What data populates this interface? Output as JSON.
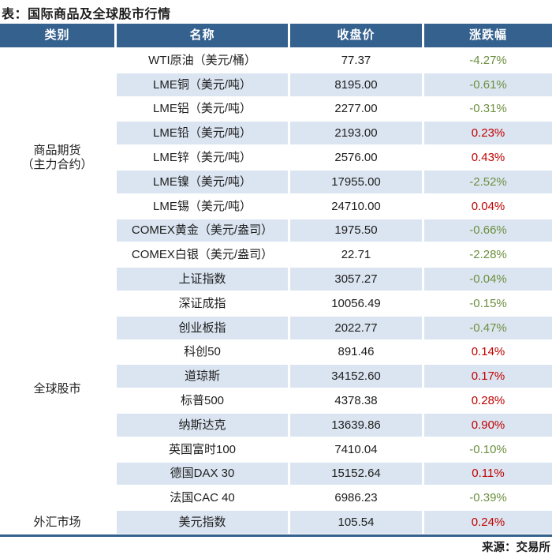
{
  "title": "表：国际商品及全球股市行情",
  "source": "来源：交易所",
  "colors": {
    "header_bg": "#35618f",
    "row_alt_bg": "#dbe5f1",
    "positive": "#c00000",
    "negative": "#6d8f3f"
  },
  "table": {
    "headers": [
      "类别",
      "名称",
      "收盘价",
      "涨跌幅"
    ],
    "groups": [
      {
        "category_lines": [
          "商品期货",
          "（主力合约）"
        ],
        "rows": [
          {
            "name": "WTI原油（美元/桶）",
            "close": "77.37",
            "change": "-4.27%"
          },
          {
            "name": "LME铜（美元/吨）",
            "close": "8195.00",
            "change": "-0.61%"
          },
          {
            "name": "LME铝（美元/吨）",
            "close": "2277.00",
            "change": "-0.31%"
          },
          {
            "name": "LME铅（美元/吨）",
            "close": "2193.00",
            "change": "0.23%"
          },
          {
            "name": "LME锌（美元/吨）",
            "close": "2576.00",
            "change": "0.43%"
          },
          {
            "name": "LME镍（美元/吨）",
            "close": "17955.00",
            "change": "-2.52%"
          },
          {
            "name": "LME锡（美元/吨）",
            "close": "24710.00",
            "change": "0.04%"
          },
          {
            "name": "COMEX黄金（美元/盎司）",
            "close": "1975.50",
            "change": "-0.66%"
          },
          {
            "name": "COMEX白银（美元/盎司）",
            "close": "22.71",
            "change": "-2.28%"
          }
        ]
      },
      {
        "category_lines": [
          "全球股市"
        ],
        "rows": [
          {
            "name": "上证指数",
            "close": "3057.27",
            "change": "-0.04%"
          },
          {
            "name": "深证成指",
            "close": "10056.49",
            "change": "-0.15%"
          },
          {
            "name": "创业板指",
            "close": "2022.77",
            "change": "-0.47%"
          },
          {
            "name": "科创50",
            "close": "891.46",
            "change": "0.14%"
          },
          {
            "name": "道琼斯",
            "close": "34152.60",
            "change": "0.17%"
          },
          {
            "name": "标普500",
            "close": "4378.38",
            "change": "0.28%"
          },
          {
            "name": "纳斯达克",
            "close": "13639.86",
            "change": "0.90%"
          },
          {
            "name": "英国富时100",
            "close": "7410.04",
            "change": "-0.10%"
          },
          {
            "name": "德国DAX 30",
            "close": "15152.64",
            "change": "0.11%"
          },
          {
            "name": "法国CAC 40",
            "close": "6986.23",
            "change": "-0.39%"
          }
        ]
      },
      {
        "category_lines": [
          "外汇市场"
        ],
        "rows": [
          {
            "name": "美元指数",
            "close": "105.54",
            "change": "0.24%"
          }
        ]
      }
    ]
  }
}
